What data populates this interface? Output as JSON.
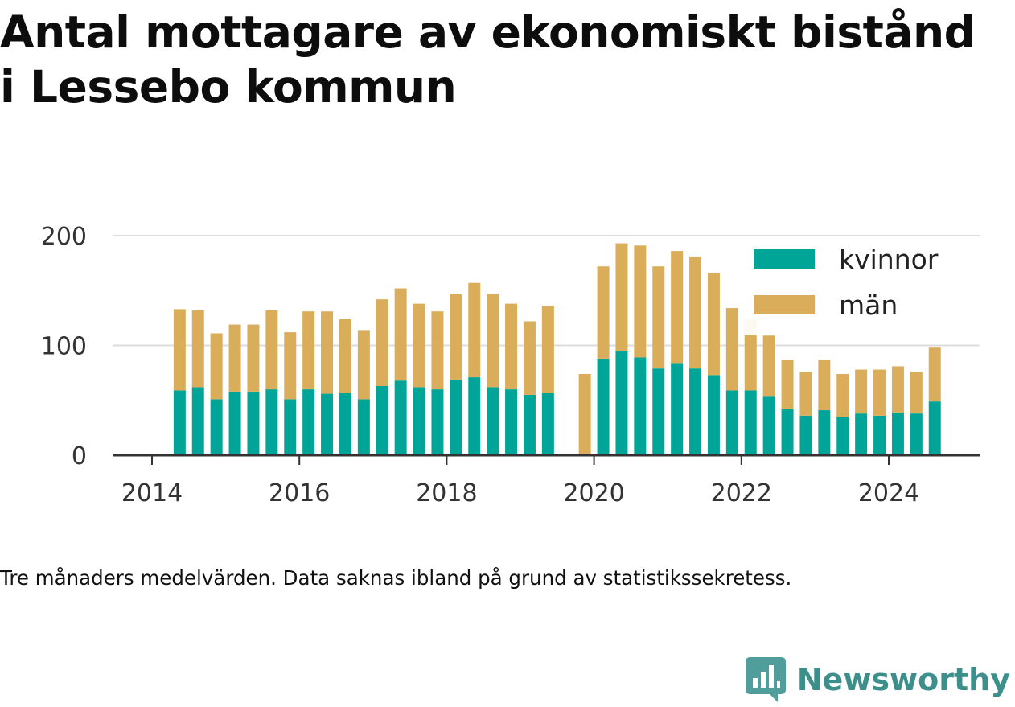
{
  "title": "Antal mottagare av ekonomiskt bistånd i Lessebo kommun",
  "note": "Tre månaders medelvärden. Data saknas ibland på grund av statistikssekretess.",
  "brand": {
    "name": "Newsworthy",
    "icon": "newsworthy-logo-icon"
  },
  "colors": {
    "kvinnor": "#00a597",
    "man": "#daad5b",
    "grid": "#dddddd",
    "axis": "#333333",
    "text": "#333333"
  },
  "chart_data": {
    "type": "bar",
    "stacked": true,
    "ylim": [
      0,
      200
    ],
    "yticks": [
      0,
      100,
      200
    ],
    "xticks": [
      2014,
      2016,
      2018,
      2020,
      2022,
      2024
    ],
    "xlim": [
      2013.5,
      2025.2
    ],
    "grid": true,
    "legend_position": "top-right",
    "x": [
      2014.375,
      2014.625,
      2014.875,
      2015.125,
      2015.375,
      2015.625,
      2015.875,
      2016.125,
      2016.375,
      2016.625,
      2016.875,
      2017.125,
      2017.375,
      2017.625,
      2017.875,
      2018.125,
      2018.375,
      2018.625,
      2018.875,
      2019.125,
      2019.375,
      2019.875,
      2020.125,
      2020.375,
      2020.625,
      2020.875,
      2021.125,
      2021.375,
      2021.625,
      2021.875,
      2022.125,
      2022.375,
      2022.625,
      2022.875,
      2023.125,
      2023.375,
      2023.625,
      2023.875,
      2024.125,
      2024.375,
      2024.625
    ],
    "series": [
      {
        "name": "kvinnor",
        "values": [
          59,
          62,
          51,
          58,
          58,
          60,
          51,
          60,
          56,
          57,
          51,
          63,
          68,
          62,
          60,
          69,
          71,
          62,
          60,
          55,
          57,
          0,
          88,
          95,
          89,
          79,
          84,
          79,
          73,
          59,
          59,
          54,
          42,
          36,
          41,
          35,
          38,
          36,
          39,
          38,
          49
        ]
      },
      {
        "name": "män",
        "values": [
          74,
          70,
          60,
          61,
          61,
          72,
          61,
          71,
          75,
          67,
          63,
          79,
          84,
          76,
          71,
          78,
          86,
          85,
          78,
          67,
          79,
          74,
          84,
          98,
          102,
          93,
          102,
          102,
          93,
          75,
          65,
          55,
          45,
          40,
          46,
          39,
          40,
          42,
          42,
          38,
          49
        ]
      }
    ]
  }
}
